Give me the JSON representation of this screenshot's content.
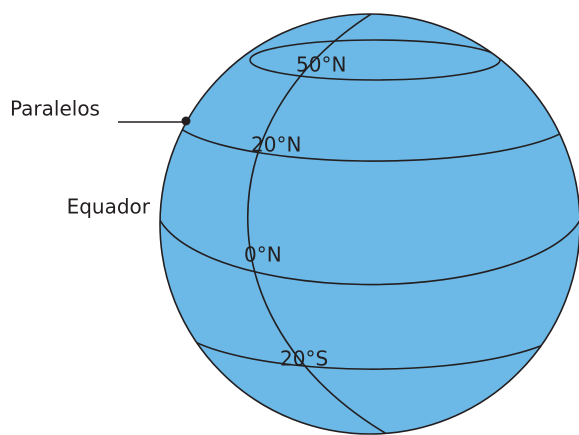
{
  "callouts": {
    "parallels": "Paralelos",
    "equator": "Equador"
  },
  "parallels": [
    {
      "label": "50°N"
    },
    {
      "label": "20°N"
    },
    {
      "label": "0°N"
    },
    {
      "label": "20°S"
    }
  ]
}
